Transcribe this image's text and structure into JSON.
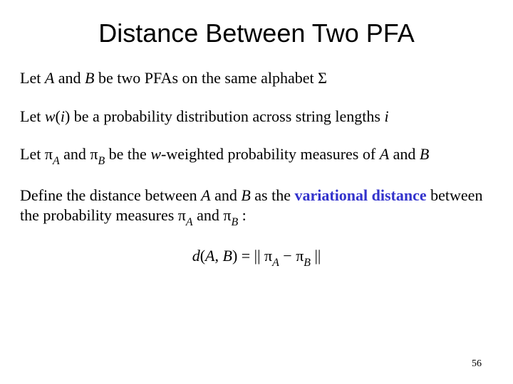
{
  "title": "Distance Between Two PFA",
  "p1": {
    "t1": "Let ",
    "A": "A",
    "t2": " and ",
    "B": "B",
    "t3": " be two PFAs on the same alphabet ",
    "sigma": "Σ"
  },
  "p2": {
    "t1": "Let ",
    "w": "w",
    "lp": "(",
    "i": "i",
    "rp": ")",
    "t2": "  be a probability distribution across string lengths ",
    "i2": "i"
  },
  "p3": {
    "t1": "Let ",
    "pi1": "π",
    "subA": "A",
    "t2": " and ",
    "pi2": "π",
    "subB": "B",
    "t3": " be the ",
    "w": "w",
    "t4": "-weighted probability measures of ",
    "A": "A",
    "t5": " and ",
    "B": "B"
  },
  "p4": {
    "t1": "Define the  distance between ",
    "A": "A",
    "t2": " and ",
    "B": "B",
    "t3": " as the ",
    "hl": "variational distance",
    "t4": " between the probability measures ",
    "pi1": "π",
    "subA": "A",
    "t5": " and ",
    "pi2": "π",
    "subB": "B",
    "t6": " :"
  },
  "formula": {
    "d": "d",
    "lp": "(",
    "A": "A",
    "comma": ", ",
    "B": "B",
    "rp": ")",
    "eq": " = || ",
    "pi1": "π",
    "subA": "A",
    "minus": " − ",
    "pi2": "π",
    "subB": "B",
    "end": " ||"
  },
  "page_number": "56",
  "colors": {
    "highlight": "#3333cc",
    "text": "#000000",
    "background": "#ffffff"
  },
  "fonts": {
    "title_family": "Arial",
    "title_size_pt": 36,
    "body_family": "Times New Roman",
    "body_size_pt": 22,
    "pagenum_size_pt": 14
  }
}
